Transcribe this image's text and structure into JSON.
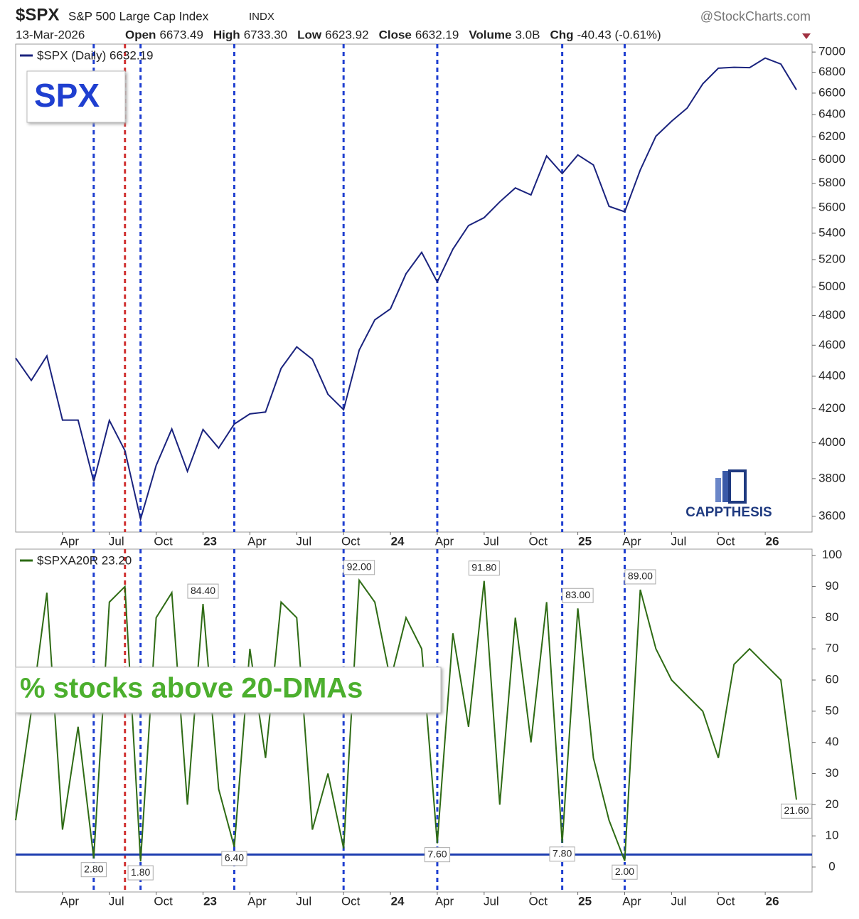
{
  "header": {
    "symbol": "$SPX",
    "name": "S&P 500 Large Cap Index",
    "exchange": "INDX",
    "source": "@StockCharts.com",
    "date": "13-Mar-2026",
    "stats": [
      {
        "label": "Open",
        "value": "6673.49"
      },
      {
        "label": "High",
        "value": "6733.30"
      },
      {
        "label": "Low",
        "value": "6623.92"
      },
      {
        "label": "Close",
        "value": "6632.19"
      },
      {
        "label": "Volume",
        "value": "3.0B"
      },
      {
        "label": "Chg",
        "value": "-40.43 (-0.61%)"
      }
    ]
  },
  "chart_data": [
    {
      "type": "line",
      "label": "SPX",
      "logo": "CAPPTHESIS",
      "x": [
        "2022-01",
        "2022-02",
        "2022-03",
        "2022-04",
        "2022-05",
        "2022-06",
        "2022-07",
        "2022-08",
        "2022-09",
        "2022-10",
        "2022-11",
        "2022-12",
        "2023-01",
        "2023-02",
        "2023-03",
        "2023-04",
        "2023-05",
        "2023-06",
        "2023-07",
        "2023-08",
        "2023-09",
        "2023-10",
        "2023-11",
        "2023-12",
        "2024-01",
        "2024-02",
        "2024-03",
        "2024-04",
        "2024-05",
        "2024-06",
        "2024-07",
        "2024-08",
        "2024-09",
        "2024-10",
        "2024-11",
        "2024-12",
        "2025-01",
        "2025-02",
        "2025-03",
        "2025-04",
        "2025-05",
        "2025-06",
        "2025-07",
        "2025-08",
        "2025-09",
        "2025-10",
        "2025-11",
        "2025-12",
        "2026-01",
        "2026-02",
        "2026-03"
      ],
      "series": [
        {
          "name": "$SPX (Daily) 6632.19",
          "color": "#1a237e",
          "values": [
            4516,
            4374,
            4530,
            4132,
            4132,
            3785,
            4130,
            3955,
            3586,
            3872,
            4080,
            3840,
            4077,
            3970,
            4109,
            4169,
            4180,
            4450,
            4589,
            4508,
            4288,
            4194,
            4568,
            4770,
            4846,
            5096,
            5254,
            5036,
            5278,
            5460,
            5522,
            5648,
            5762,
            5705,
            6032,
            5882,
            6041,
            5955,
            5612,
            5569,
            5912,
            6205,
            6339,
            6460,
            6688,
            6840,
            6849,
            6845,
            6940,
            6880,
            6632
          ]
        }
      ],
      "xlim": [
        "2022-01",
        "2026-04"
      ],
      "xticks": [
        {
          "value": "2022-04",
          "label": "Apr"
        },
        {
          "value": "2022-07",
          "label": "Jul"
        },
        {
          "value": "2022-10",
          "label": "Oct"
        },
        {
          "value": "2023-01",
          "label": "23"
        },
        {
          "value": "2023-04",
          "label": "Apr"
        },
        {
          "value": "2023-07",
          "label": "Jul"
        },
        {
          "value": "2023-10",
          "label": "Oct"
        },
        {
          "value": "2024-01",
          "label": "24"
        },
        {
          "value": "2024-04",
          "label": "Apr"
        },
        {
          "value": "2024-07",
          "label": "Jul"
        },
        {
          "value": "2024-10",
          "label": "Oct"
        },
        {
          "value": "2025-01",
          "label": "25"
        },
        {
          "value": "2025-04",
          "label": "Apr"
        },
        {
          "value": "2025-07",
          "label": "Jul"
        },
        {
          "value": "2025-10",
          "label": "Oct"
        },
        {
          "value": "2026-01",
          "label": "26"
        }
      ],
      "ylim": [
        3520,
        7080
      ],
      "log": true,
      "yticks": [
        3600,
        3800,
        4000,
        4200,
        4400,
        4600,
        4800,
        5000,
        5200,
        5400,
        5600,
        5800,
        6000,
        6200,
        6400,
        6600,
        6800,
        7000
      ],
      "markers": [
        {
          "x": "2022-06",
          "color": "#1f3fd0"
        },
        {
          "x": "2022-08",
          "color": "#d03030"
        },
        {
          "x": "2022-09",
          "color": "#1f3fd0"
        },
        {
          "x": "2023-03",
          "color": "#1f3fd0"
        },
        {
          "x": "2023-10",
          "color": "#1f3fd0"
        },
        {
          "x": "2024-04",
          "color": "#1f3fd0"
        },
        {
          "x": "2024-12",
          "color": "#1f3fd0"
        },
        {
          "x": "2025-04",
          "color": "#1f3fd0"
        }
      ]
    },
    {
      "type": "line",
      "label": "% stocks above 20-DMAs",
      "x": [
        "2022-01",
        "2022-02",
        "2022-03",
        "2022-04",
        "2022-05",
        "2022-06",
        "2022-07",
        "2022-08",
        "2022-09",
        "2022-10",
        "2022-11",
        "2022-12",
        "2023-01",
        "2023-02",
        "2023-03",
        "2023-04",
        "2023-05",
        "2023-06",
        "2023-07",
        "2023-08",
        "2023-09",
        "2023-10",
        "2023-11",
        "2023-12",
        "2024-01",
        "2024-02",
        "2024-03",
        "2024-04",
        "2024-05",
        "2024-06",
        "2024-07",
        "2024-08",
        "2024-09",
        "2024-10",
        "2024-11",
        "2024-12",
        "2025-01",
        "2025-02",
        "2025-03",
        "2025-04",
        "2025-05",
        "2025-06",
        "2025-07",
        "2025-08",
        "2025-09",
        "2025-10",
        "2025-11",
        "2025-12",
        "2026-01",
        "2026-02",
        "2026-03"
      ],
      "series": [
        {
          "name": "$SPXA20R 23.20",
          "color": "#2e6b14",
          "values": [
            15,
            50,
            88,
            12,
            45,
            2.8,
            85,
            90,
            1.8,
            80,
            88,
            20,
            84.4,
            25,
            6.4,
            70,
            35,
            85,
            80,
            12,
            30,
            6,
            92,
            85,
            60,
            80,
            70,
            7.6,
            75,
            45,
            91.8,
            20,
            80,
            40,
            85,
            7.8,
            83,
            35,
            15,
            2,
            89,
            70,
            60,
            55,
            50,
            35,
            65,
            70,
            65,
            60,
            21.6
          ]
        }
      ],
      "xlim": [
        "2022-01",
        "2026-04"
      ],
      "xticks": [
        {
          "value": "2022-04",
          "label": "Apr"
        },
        {
          "value": "2022-07",
          "label": "Jul"
        },
        {
          "value": "2022-10",
          "label": "Oct"
        },
        {
          "value": "2023-01",
          "label": "23"
        },
        {
          "value": "2023-04",
          "label": "Apr"
        },
        {
          "value": "2023-07",
          "label": "Jul"
        },
        {
          "value": "2023-10",
          "label": "Oct"
        },
        {
          "value": "2024-01",
          "label": "24"
        },
        {
          "value": "2024-04",
          "label": "Apr"
        },
        {
          "value": "2024-07",
          "label": "Jul"
        },
        {
          "value": "2024-10",
          "label": "Oct"
        },
        {
          "value": "2025-01",
          "label": "25"
        },
        {
          "value": "2025-04",
          "label": "Apr"
        },
        {
          "value": "2025-07",
          "label": "Jul"
        },
        {
          "value": "2025-10",
          "label": "Oct"
        },
        {
          "value": "2026-01",
          "label": "26"
        }
      ],
      "ylim": [
        -8,
        102
      ],
      "yticks": [
        0,
        10,
        20,
        30,
        40,
        50,
        60,
        70,
        80,
        90,
        100
      ],
      "hline": {
        "value": 4,
        "color": "#1f3fb0"
      },
      "annotations": [
        {
          "x": "2022-06",
          "value": 2.8,
          "label": "2.80"
        },
        {
          "x": "2022-09",
          "value": 1.8,
          "label": "1.80"
        },
        {
          "x": "2023-01",
          "value": 84.4,
          "label": "84.40"
        },
        {
          "x": "2023-03",
          "value": 6.4,
          "label": "6.40"
        },
        {
          "x": "2023-11",
          "value": 92,
          "label": "92.00"
        },
        {
          "x": "2024-04",
          "value": 7.6,
          "label": "7.60"
        },
        {
          "x": "2024-07",
          "value": 91.8,
          "label": "91.80"
        },
        {
          "x": "2024-12",
          "value": 7.8,
          "label": "7.80"
        },
        {
          "x": "2025-01",
          "value": 83,
          "label": "83.00"
        },
        {
          "x": "2025-04",
          "value": 2,
          "label": "2.00"
        },
        {
          "x": "2025-05",
          "value": 89,
          "label": "89.00"
        },
        {
          "x": "2026-03",
          "value": 21.6,
          "label": "21.60"
        }
      ],
      "markers": [
        {
          "x": "2022-06",
          "color": "#1f3fd0"
        },
        {
          "x": "2022-08",
          "color": "#d03030"
        },
        {
          "x": "2022-09",
          "color": "#1f3fd0"
        },
        {
          "x": "2023-03",
          "color": "#1f3fd0"
        },
        {
          "x": "2023-10",
          "color": "#1f3fd0"
        },
        {
          "x": "2024-04",
          "color": "#1f3fd0"
        },
        {
          "x": "2024-12",
          "color": "#1f3fd0"
        },
        {
          "x": "2025-04",
          "color": "#1f3fd0"
        }
      ]
    }
  ]
}
